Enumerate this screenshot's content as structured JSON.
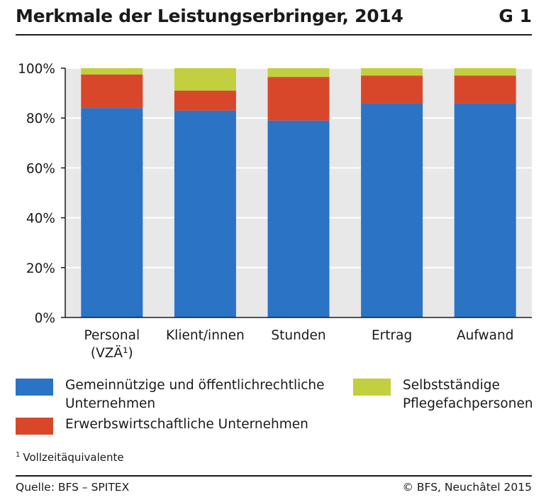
{
  "header": {
    "title": "Merkmale der Leistungserbringer, 2014",
    "figure_id": "G 1"
  },
  "chart_data": {
    "type": "bar",
    "stacked": true,
    "categories": [
      "Personal (VZÄ¹)",
      "Klient/innen",
      "Stunden",
      "Ertrag",
      "Aufwand"
    ],
    "category_lines": [
      [
        "Personal",
        "(VZÄ¹)"
      ],
      [
        "Klient/innen"
      ],
      [
        "Stunden"
      ],
      [
        "Ertrag"
      ],
      [
        "Aufwand"
      ]
    ],
    "series": [
      {
        "name": "Gemeinnützige und öffentlichrechtliche Unternehmen",
        "color": "#2b73c4",
        "values": [
          84,
          83,
          79,
          86,
          86
        ]
      },
      {
        "name": "Erwerbswirtschaftliche Unternehmen",
        "color": "#d9472b",
        "values": [
          13.5,
          8,
          17.5,
          11,
          11
        ]
      },
      {
        "name": "Selbstständige Pflegefachpersonen",
        "color": "#c2cf3e",
        "values": [
          2.5,
          9,
          3.5,
          3,
          3
        ]
      }
    ],
    "ylim": [
      0,
      100
    ],
    "yticks": [
      "0%",
      "20%",
      "40%",
      "60%",
      "80%",
      "100%"
    ],
    "ytick_values": [
      0,
      20,
      40,
      60,
      80,
      100
    ],
    "grid": true,
    "legend_position": "bottom",
    "background_color": "#e8e8e8"
  },
  "legend": {
    "item1_lines": [
      "Gemeinnützige und öffentlichrechtliche",
      "Unternehmen"
    ],
    "item2": "Erwerbswirtschaftliche Unternehmen",
    "item3_lines": [
      "Selbstständige",
      "Pflegefachpersonen"
    ]
  },
  "footnote": {
    "mark": "1",
    "text": "Vollzeitäquivalente"
  },
  "footer": {
    "source": "Quelle: BFS – SPITEX",
    "copyright": "© BFS, Neuchâtel 2015"
  }
}
